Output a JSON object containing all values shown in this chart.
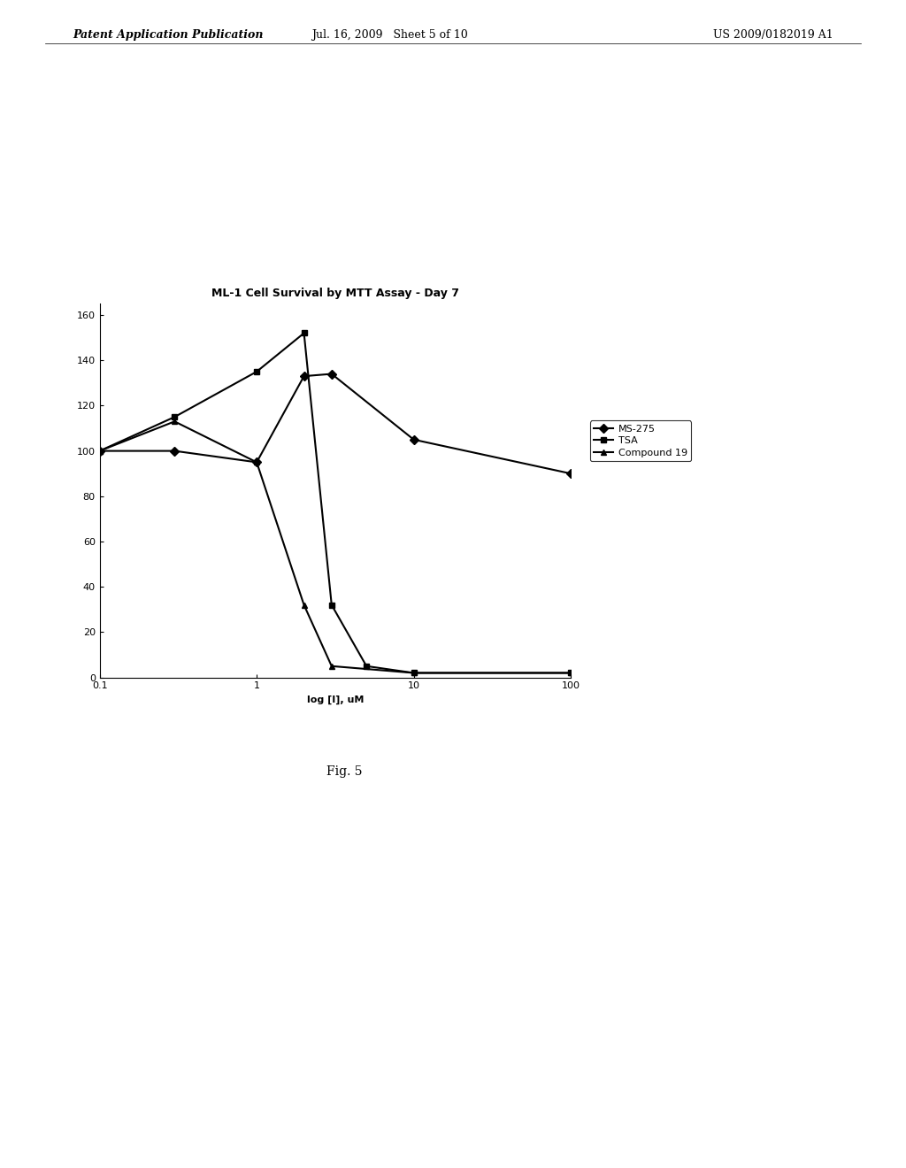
{
  "title": "ML-1 Cell Survival by MTT Assay - Day 7",
  "xlabel": "log [I], uM",
  "ylabel": "",
  "xlim_log": [
    0.1,
    100
  ],
  "ylim": [
    0,
    165
  ],
  "yticks": [
    0,
    20,
    40,
    60,
    80,
    100,
    120,
    140,
    160
  ],
  "xticks": [
    0.1,
    1,
    10,
    100
  ],
  "xtick_labels": [
    "0.1",
    "1",
    "10",
    "100"
  ],
  "series": [
    {
      "label": "MS-275",
      "x": [
        0.1,
        0.3,
        1,
        2,
        3,
        10,
        100
      ],
      "y": [
        100,
        100,
        95,
        133,
        134,
        105,
        90
      ],
      "marker": "D",
      "color": "#000000",
      "linewidth": 1.5,
      "markersize": 5
    },
    {
      "label": "TSA",
      "x": [
        0.1,
        0.3,
        1,
        2,
        3,
        5,
        10,
        100
      ],
      "y": [
        100,
        115,
        135,
        152,
        32,
        5,
        2,
        2
      ],
      "marker": "s",
      "color": "#000000",
      "linewidth": 1.5,
      "markersize": 5
    },
    {
      "label": "Compound 19",
      "x": [
        0.1,
        0.3,
        1,
        2,
        3,
        10,
        100
      ],
      "y": [
        100,
        113,
        95,
        32,
        5,
        2,
        2
      ],
      "marker": "^",
      "color": "#000000",
      "linewidth": 1.5,
      "markersize": 5
    }
  ],
  "background_color": "#ffffff",
  "title_fontsize": 9,
  "axis_fontsize": 8,
  "tick_fontsize": 8,
  "legend_fontsize": 8,
  "fig_caption": "Fig. 5",
  "header_left": "Patent Application Publication",
  "header_center": "Jul. 16, 2009   Sheet 5 of 10",
  "header_right": "US 2009/0182019 A1"
}
